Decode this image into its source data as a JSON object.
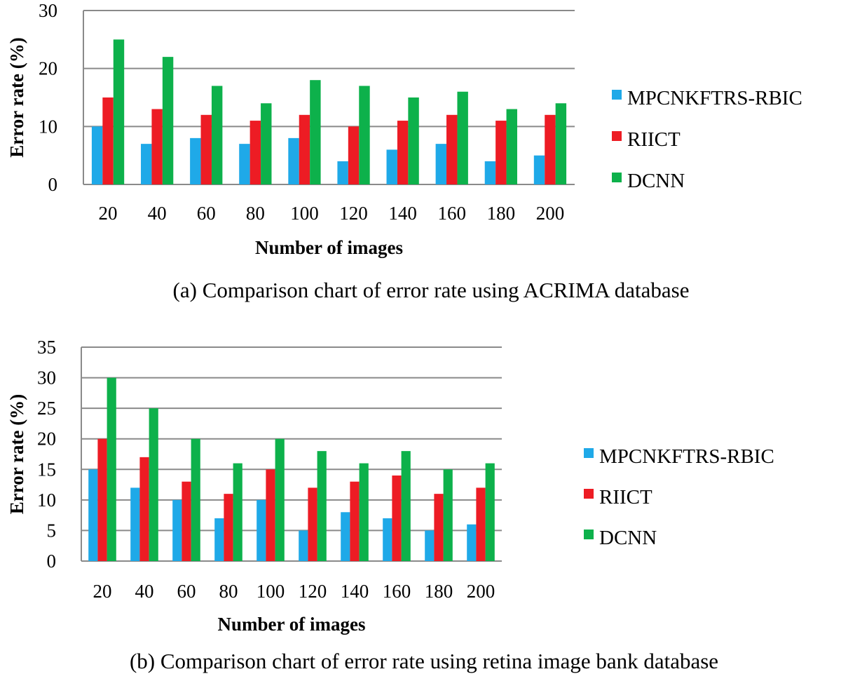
{
  "chart_data": [
    {
      "type": "bar",
      "title": "(a) Comparison chart of error rate using ACRIMA database",
      "xlabel": "Number of images",
      "ylabel": "Error rate (%)",
      "ylim": [
        0,
        30
      ],
      "yticks": [
        0,
        10,
        20,
        30
      ],
      "grid": true,
      "legend_position": "right",
      "categories": [
        "20",
        "40",
        "60",
        "80",
        "100",
        "120",
        "140",
        "160",
        "180",
        "200"
      ],
      "series": [
        {
          "name": "MPCNKFTRS-RBIC",
          "color": "#1fa9e8",
          "values": [
            10,
            7,
            8,
            7,
            8,
            4,
            6,
            7,
            4,
            5
          ]
        },
        {
          "name": "RIICT",
          "color": "#ed1c24",
          "values": [
            15,
            13,
            12,
            11,
            12,
            10,
            11,
            12,
            11,
            12
          ]
        },
        {
          "name": "DCNN",
          "color": "#0db14b",
          "values": [
            25,
            22,
            17,
            14,
            18,
            17,
            15,
            16,
            13,
            14
          ]
        }
      ]
    },
    {
      "type": "bar",
      "title": "(b) Comparison chart of error rate using retina image bank database",
      "xlabel": "Number of images",
      "ylabel": "Error rate (%)",
      "ylim": [
        0,
        35
      ],
      "yticks": [
        0,
        5,
        10,
        15,
        20,
        25,
        30,
        35
      ],
      "grid": true,
      "legend_position": "right",
      "categories": [
        "20",
        "40",
        "60",
        "80",
        "100",
        "120",
        "140",
        "160",
        "180",
        "200"
      ],
      "series": [
        {
          "name": "MPCNKFTRS-RBIC",
          "color": "#1fa9e8",
          "values": [
            15,
            12,
            10,
            7,
            10,
            5,
            8,
            7,
            5,
            6
          ]
        },
        {
          "name": "RIICT",
          "color": "#ed1c24",
          "values": [
            20,
            17,
            13,
            11,
            15,
            12,
            13,
            14,
            11,
            12
          ]
        },
        {
          "name": "DCNN",
          "color": "#0db14b",
          "values": [
            30,
            25,
            20,
            16,
            20,
            18,
            16,
            18,
            15,
            16
          ]
        }
      ]
    }
  ]
}
